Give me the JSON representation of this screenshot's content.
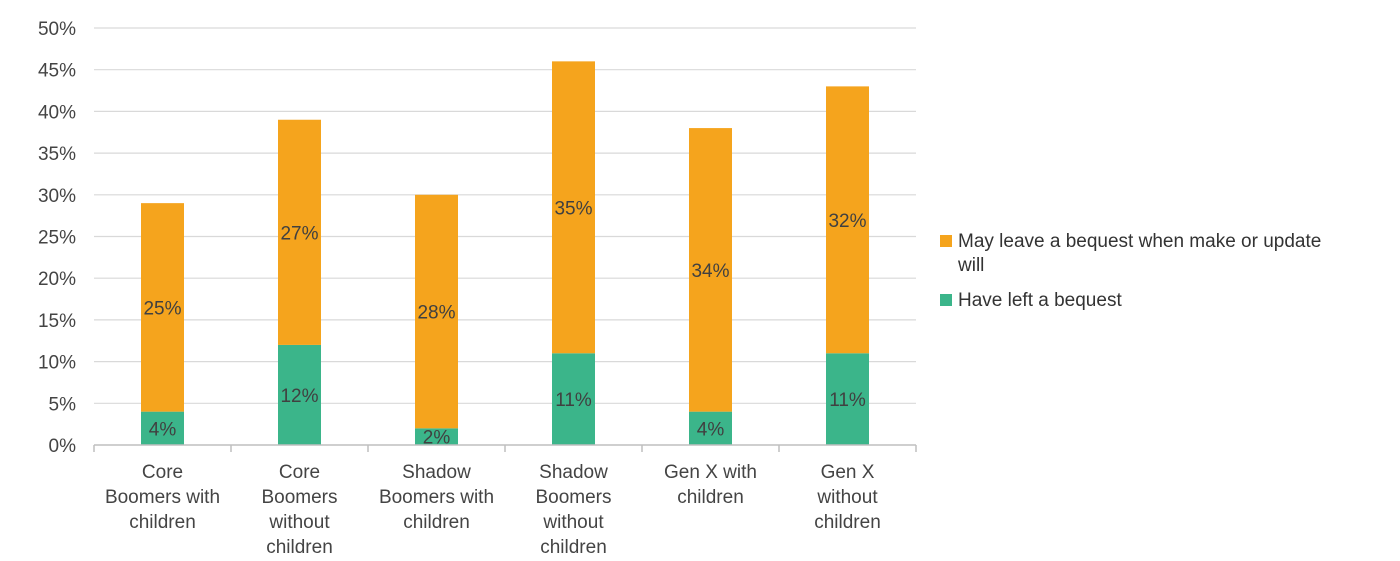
{
  "chart_data": {
    "type": "bar",
    "stacked": true,
    "categories": [
      [
        "Core",
        "Boomers with",
        "children"
      ],
      [
        "Core",
        "Boomers",
        "without",
        "children"
      ],
      [
        "Shadow",
        "Boomers with",
        "children"
      ],
      [
        "Shadow",
        "Boomers",
        "without",
        "children"
      ],
      [
        "Gen X with",
        "children"
      ],
      [
        "Gen X",
        "without",
        "children"
      ]
    ],
    "series": [
      {
        "name": "Have left a bequest",
        "color": "#3bb58a",
        "values": [
          4,
          12,
          2,
          11,
          4,
          11
        ],
        "labels": [
          "4%",
          "12%",
          "2%",
          "11%",
          "4%",
          "11%"
        ]
      },
      {
        "name": "May leave a bequest when make or update will",
        "color": "#f5a41d",
        "values": [
          25,
          27,
          28,
          35,
          34,
          32
        ],
        "labels": [
          "25%",
          "27%",
          "28%",
          "35%",
          "34%",
          "32%"
        ]
      }
    ],
    "y_ticks": [
      "0%",
      "5%",
      "10%",
      "15%",
      "20%",
      "25%",
      "30%",
      "35%",
      "40%",
      "45%",
      "50%"
    ],
    "ylim": [
      0,
      50
    ],
    "grid": true,
    "legend": {
      "position": "right",
      "entries": [
        {
          "lines": [
            "May leave a bequest when make or update",
            "will"
          ],
          "color": "#f5a41d"
        },
        {
          "lines": [
            "Have left a bequest"
          ],
          "color": "#3bb58a"
        }
      ]
    },
    "title": "",
    "xlabel": "",
    "ylabel": ""
  }
}
